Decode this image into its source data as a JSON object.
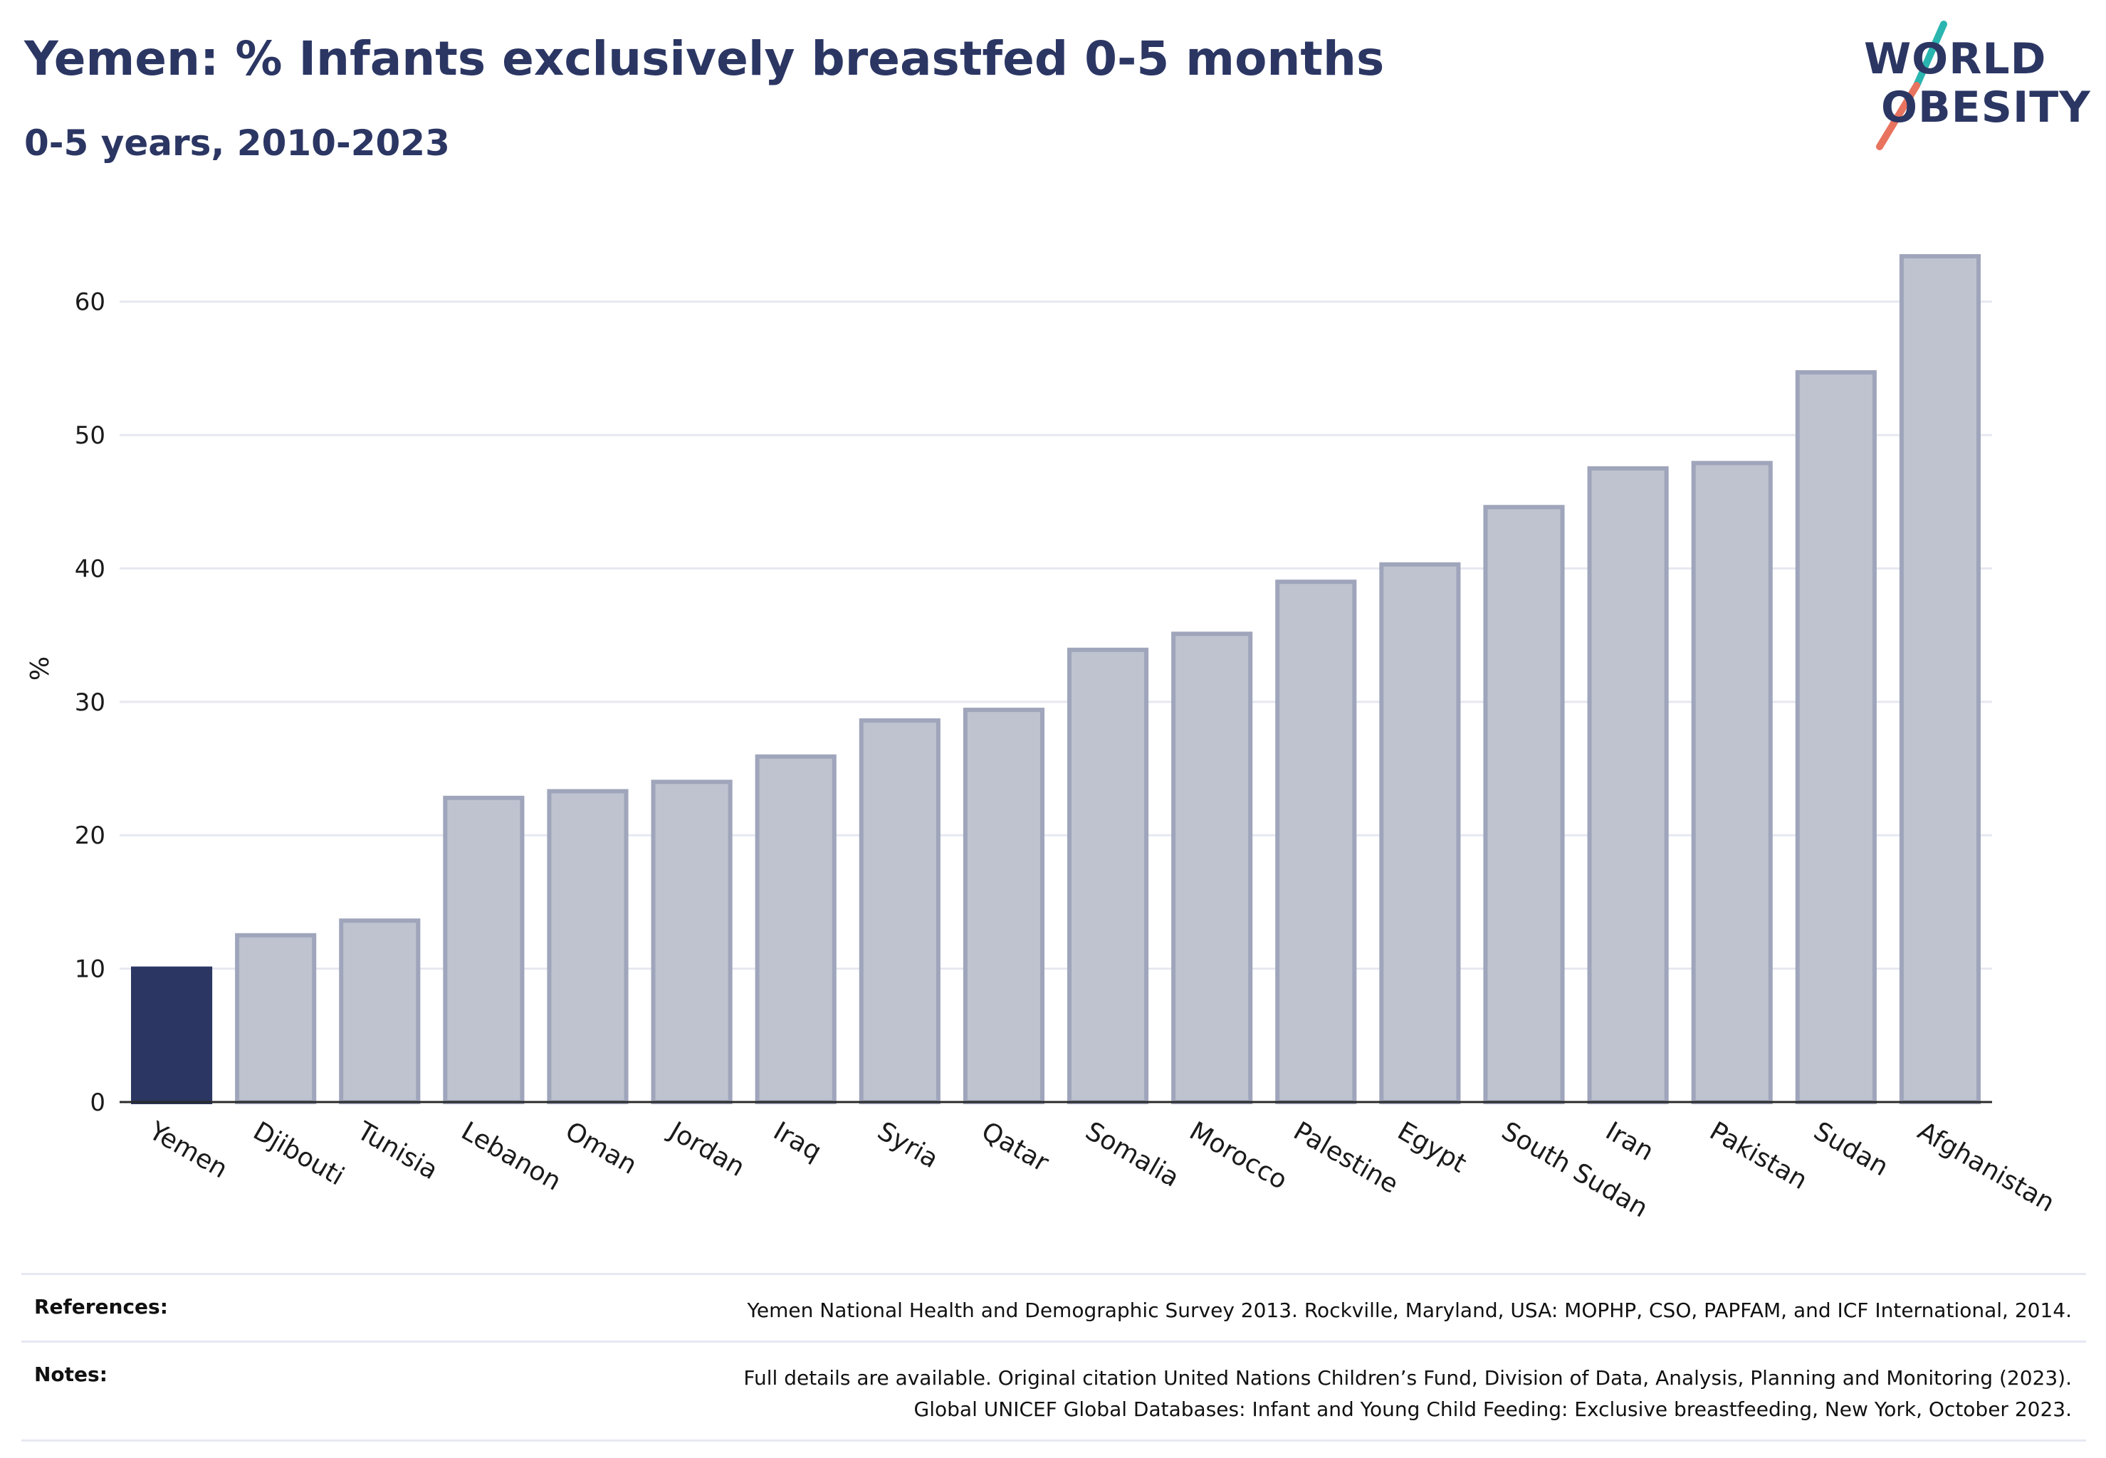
{
  "header": {
    "title": "Yemen: % Infants exclusively breastfed 0-5 months",
    "subtitle": "0-5 years, 2010-2023"
  },
  "logo": {
    "line1": "WORLD",
    "line2": "OBESITY",
    "slash_colors": [
      "#2bb5b0",
      "#e8735f"
    ]
  },
  "chart_data": {
    "type": "bar",
    "categories": [
      "Yemen",
      "Djibouti",
      "Tunisia",
      "Lebanon",
      "Oman",
      "Jordan",
      "Iraq",
      "Syria",
      "Qatar",
      "Somalia",
      "Morocco",
      "Palestine",
      "Egypt",
      "South Sudan",
      "Iran",
      "Pakistan",
      "Sudan",
      "Afghanistan"
    ],
    "values": [
      10,
      12.5,
      13.6,
      22.8,
      23.3,
      24,
      25.9,
      28.6,
      29.4,
      33.9,
      35.1,
      39,
      40.3,
      44.6,
      47.5,
      47.9,
      54.7,
      63.4
    ],
    "highlight": "Yemen",
    "ylabel": "%",
    "xlabel": "",
    "ylim": [
      0,
      65
    ],
    "yticks": [
      0,
      10,
      20,
      30,
      40,
      50,
      60
    ],
    "grid": true,
    "colors": {
      "highlight": "#2b3663",
      "bar_fill": "#bfc3d0",
      "bar_stroke": "#9fa5bb",
      "grid": "#e6e8f0",
      "axis": "#2a2a2a"
    }
  },
  "footer": {
    "references_label": "References:",
    "references_text": "Yemen National Health and Demographic Survey 2013. Rockville, Maryland, USA: MOPHP, CSO, PAPFAM, and ICF International, 2014.",
    "notes_label": "Notes:",
    "notes_text_1": "Full details are available. Original citation United Nations Children’s Fund, Division of Data, Analysis, Planning and Monitoring (2023).",
    "notes_text_2": "Global UNICEF Global Databases: Infant and Young Child Feeding: Exclusive breastfeeding, New York, October 2023."
  }
}
